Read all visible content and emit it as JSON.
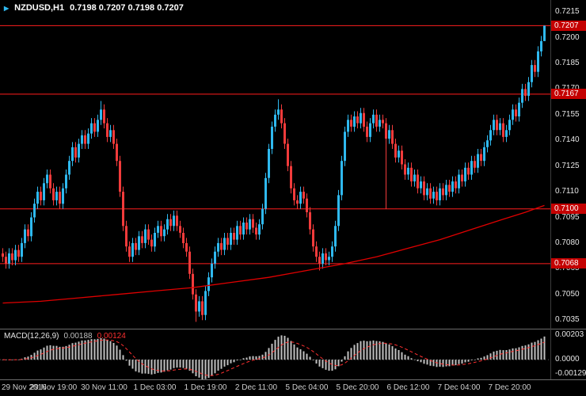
{
  "colors": {
    "background": "#000000",
    "bull": "#2FB9EF",
    "bear": "#F23B3B",
    "line_red": "#FF1E1E",
    "tag_bg": "#C40000",
    "ma": "#E00000",
    "macd_hist": "#C0C0C0",
    "macd_signal": "#FF3030",
    "axis_text": "#E6E6E6",
    "time_text": "#CFCFCF",
    "separator": "#6B6B6B"
  },
  "icons": {
    "symbol_marker": "▶"
  },
  "chart_data": [
    {
      "type": "candlestick",
      "title": "NZDUSD,H1",
      "symbol": "NZDUSD,H1",
      "ohlc_text": "0.7198 0.7207 0.7198 0.7207",
      "x_tick_labels": [
        "29 Nov 2016",
        "29 Nov 19:00",
        "30 Nov 11:00",
        "1 Dec 03:00",
        "1 Dec 19:00",
        "2 Dec 11:00",
        "5 Dec 04:00",
        "5 Dec 20:00",
        "6 Dec 12:00",
        "7 Dec 04:00",
        "7 Dec 20:00"
      ],
      "x_tick_bars": [
        0,
        16,
        32,
        48,
        64,
        80,
        96,
        112,
        128,
        144,
        160
      ],
      "y_tick_values": [
        0.7215,
        0.72,
        0.7185,
        0.717,
        0.7155,
        0.714,
        0.7125,
        0.711,
        0.7095,
        0.708,
        0.7065,
        0.705,
        0.7035
      ],
      "ylim": [
        0.703,
        0.7222
      ],
      "hlines": [
        0.7207,
        0.7167,
        0.71,
        0.7068
      ],
      "first_open": 0.7074,
      "closes": [
        0.7072,
        0.7068,
        0.7074,
        0.707,
        0.7076,
        0.7072,
        0.708,
        0.7088,
        0.7084,
        0.7095,
        0.7103,
        0.711,
        0.7105,
        0.7115,
        0.712,
        0.7112,
        0.7105,
        0.711,
        0.7103,
        0.7112,
        0.712,
        0.7128,
        0.7136,
        0.713,
        0.7138,
        0.7143,
        0.7138,
        0.7144,
        0.715,
        0.7145,
        0.7152,
        0.7158,
        0.715,
        0.7142,
        0.7146,
        0.7138,
        0.7128,
        0.711,
        0.709,
        0.7078,
        0.7072,
        0.708,
        0.7076,
        0.7084,
        0.708,
        0.7088,
        0.7082,
        0.7078,
        0.7086,
        0.709,
        0.7084,
        0.7088,
        0.7094,
        0.709,
        0.7096,
        0.709,
        0.7086,
        0.708,
        0.7075,
        0.7062,
        0.705,
        0.704,
        0.7046,
        0.7038,
        0.7052,
        0.706,
        0.7068,
        0.7075,
        0.708,
        0.7076,
        0.7083,
        0.7079,
        0.7086,
        0.7082,
        0.709,
        0.7085,
        0.7092,
        0.7088,
        0.7094,
        0.7089,
        0.7085,
        0.7091,
        0.71,
        0.7118,
        0.7135,
        0.7148,
        0.7155,
        0.7158,
        0.715,
        0.7138,
        0.7125,
        0.7112,
        0.7105,
        0.7103,
        0.711,
        0.7106,
        0.7098,
        0.7088,
        0.7078,
        0.7072,
        0.7068,
        0.7074,
        0.707,
        0.7072,
        0.7078,
        0.709,
        0.7108,
        0.7128,
        0.7145,
        0.7152,
        0.7148,
        0.7154,
        0.715,
        0.7156,
        0.7148,
        0.7142,
        0.715,
        0.7155,
        0.7148,
        0.7152,
        0.715,
        0.7141,
        0.7146,
        0.7138,
        0.713,
        0.7134,
        0.7126,
        0.712,
        0.7124,
        0.7116,
        0.712,
        0.7112,
        0.7116,
        0.7108,
        0.7112,
        0.7106,
        0.711,
        0.7105,
        0.7112,
        0.7108,
        0.7114,
        0.711,
        0.7116,
        0.7112,
        0.712,
        0.7116,
        0.7124,
        0.712,
        0.7128,
        0.7124,
        0.7132,
        0.7128,
        0.7136,
        0.714,
        0.7146,
        0.7152,
        0.7146,
        0.715,
        0.7142,
        0.7146,
        0.7152,
        0.7158,
        0.7154,
        0.7162,
        0.717,
        0.7166,
        0.7174,
        0.7184,
        0.718,
        0.7192,
        0.7198,
        0.7207
      ],
      "wick_overrides": {
        "31": {
          "h": 0.7163
        },
        "61": {
          "l": 0.7034
        },
        "63": {
          "l": 0.7035
        },
        "87": {
          "h": 0.7164
        },
        "100": {
          "l": 0.7064
        },
        "121": {
          "l": 0.71
        },
        "171": {
          "h": 0.7207,
          "l": 0.7198
        }
      },
      "ma_points": [
        [
          0,
          0.7045
        ],
        [
          12,
          0.7046
        ],
        [
          24,
          0.7048
        ],
        [
          36,
          0.705
        ],
        [
          48,
          0.7052
        ],
        [
          60,
          0.7054
        ],
        [
          72,
          0.7057
        ],
        [
          84,
          0.706
        ],
        [
          96,
          0.7064
        ],
        [
          108,
          0.7068
        ],
        [
          118,
          0.7072
        ],
        [
          128,
          0.7077
        ],
        [
          138,
          0.7082
        ],
        [
          148,
          0.7088
        ],
        [
          158,
          0.7094
        ],
        [
          165,
          0.7098
        ],
        [
          171,
          0.7102
        ]
      ]
    },
    {
      "type": "bar",
      "name": "MACD",
      "label": "MACD(12,26,9)",
      "main_value": "0.00188",
      "signal_value": "0.00124",
      "params": [
        12,
        26,
        9
      ],
      "y_tick_labels": [
        "0.00203",
        "0.0000",
        "-0.00129"
      ],
      "ylim": [
        -0.0015,
        0.0023
      ]
    }
  ]
}
